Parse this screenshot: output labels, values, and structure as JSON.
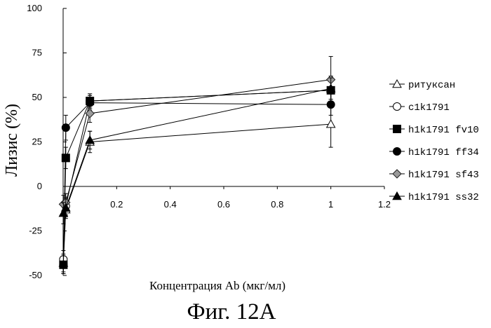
{
  "chart_data": {
    "type": "line",
    "title": "",
    "caption": "Фиг. 12A",
    "xlabel": "Концентрация Ab (мкг/мл)",
    "ylabel": "Лизис (%)",
    "xlim": [
      0,
      1.2
    ],
    "ylim": [
      -50,
      100
    ],
    "xticks": [
      0.2,
      0.4,
      0.6,
      0.8,
      1,
      1.2
    ],
    "xtick_labels": [
      "0.2",
      "0.4",
      "0.6",
      "0.8",
      "1",
      "1.2"
    ],
    "yticks": [
      -50,
      -25,
      0,
      25,
      50,
      75,
      100
    ],
    "ytick_labels": [
      "-50",
      "-25",
      "0",
      "25",
      "50",
      "75",
      "100"
    ],
    "grid": false,
    "legend_position": "right",
    "x": [
      0.001,
      0.01,
      0.1,
      1
    ],
    "series": [
      {
        "name": "ритуксан",
        "marker": "triangle-open",
        "values": [
          -43,
          -13,
          25,
          35
        ],
        "errors": [
          5,
          5,
          6,
          13
        ]
      },
      {
        "name": "c1k1791",
        "marker": "circle-open",
        "values": [
          -41,
          -11,
          48,
          54
        ],
        "errors": [
          5,
          5,
          4,
          8
        ]
      },
      {
        "name": "h1k1791 fv10",
        "marker": "square-filled",
        "values": [
          -44,
          16,
          48,
          54
        ],
        "errors": [
          5,
          6,
          4,
          7
        ]
      },
      {
        "name": "h1k1791 ff34",
        "marker": "circle-filled",
        "values": [
          -44,
          33,
          47,
          46
        ],
        "errors": [
          5,
          7,
          4,
          6
        ]
      },
      {
        "name": "h1k1791 sf43",
        "marker": "diamond-gray",
        "values": [
          -10,
          -9,
          41,
          60
        ],
        "errors": [
          5,
          5,
          5,
          13
        ]
      },
      {
        "name": "h1k1791 ss32",
        "marker": "triangle-filled",
        "values": [
          -15,
          -12,
          26,
          55
        ],
        "errors": [
          6,
          5,
          5,
          6
        ]
      }
    ]
  }
}
